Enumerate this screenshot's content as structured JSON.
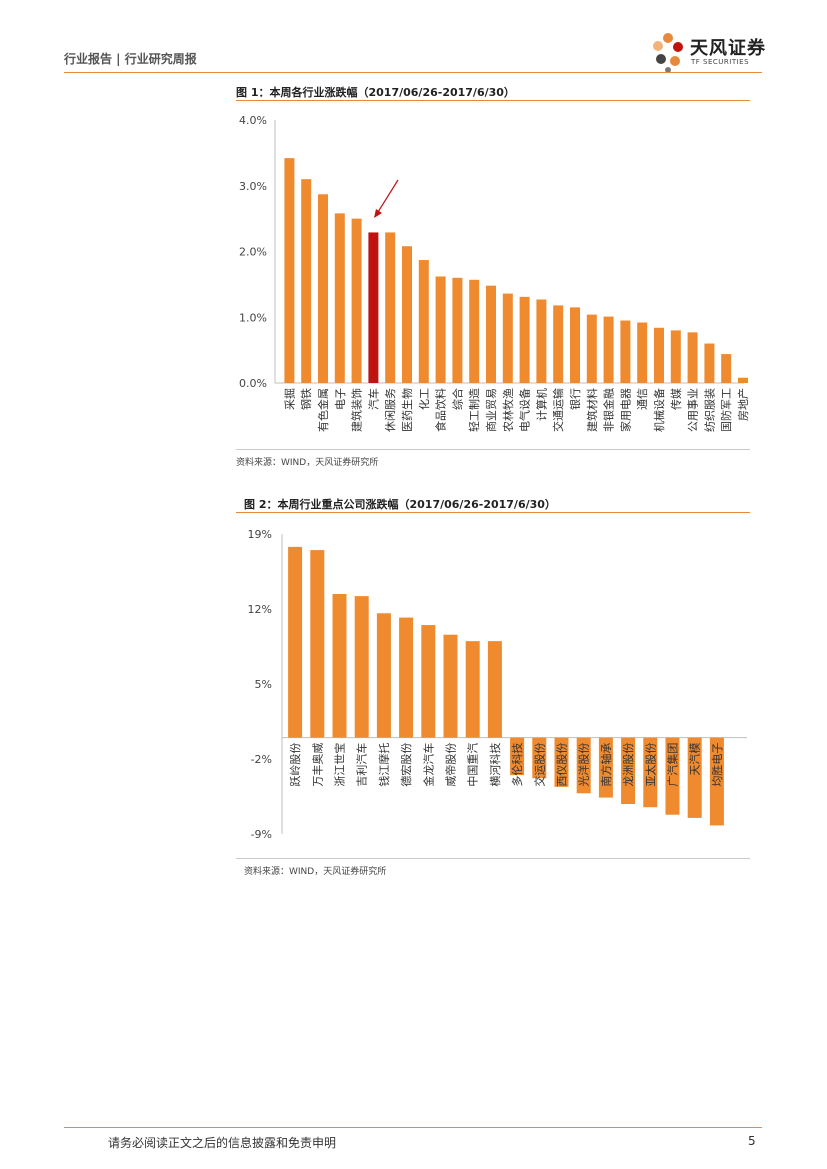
{
  "header": {
    "left_text": "行业报告 | 行业研究周报",
    "logo_cn": "天风证券",
    "logo_en": "TF SECURITIES"
  },
  "figure1": {
    "title": "图 1：本周各行业涨跌幅（2017/06/26-2017/6/30）",
    "source": "资料来源：WIND，天风证券研究所"
  },
  "figure2": {
    "title": "图 2：本周行业重点公司涨跌幅（2017/06/26-2017/6/30）",
    "source": "资料来源：WIND，天风证券研究所"
  },
  "footer": {
    "disclaimer": "请务必阅读正文之后的信息披露和免责申明",
    "page": "5"
  },
  "colors": {
    "accent": "#e8883a",
    "bar": "#ef8a2f",
    "highlight": "#c0120f"
  },
  "chart_data": [
    {
      "type": "bar",
      "title": "本周各行业涨跌幅（2017/06/26-2017/6/30）",
      "categories": [
        "采掘",
        "钢铁",
        "有色金属",
        "电子",
        "建筑装饰",
        "汽车",
        "休闲服务",
        "医药生物",
        "化工",
        "食品饮料",
        "综合",
        "轻工制造",
        "商业贸易",
        "农林牧渔",
        "电气设备",
        "计算机",
        "交通运输",
        "银行",
        "建筑材料",
        "非银金融",
        "家用电器",
        "通信",
        "机械设备",
        "传媒",
        "公用事业",
        "纺织服装",
        "国防军工",
        "房地产"
      ],
      "values": [
        3.42,
        3.1,
        2.87,
        2.58,
        2.5,
        2.29,
        2.29,
        2.08,
        1.87,
        1.62,
        1.6,
        1.57,
        1.48,
        1.36,
        1.31,
        1.27,
        1.18,
        1.15,
        1.04,
        1.01,
        0.95,
        0.92,
        0.84,
        0.8,
        0.77,
        0.6,
        0.44,
        0.08
      ],
      "highlight": "汽车",
      "ylim": [
        0,
        4
      ],
      "yticks": [
        "0.0%",
        "1.0%",
        "2.0%",
        "3.0%",
        "4.0%"
      ],
      "ytick_values": [
        0,
        1,
        2,
        3,
        4
      ]
    },
    {
      "type": "bar",
      "title": "本周行业重点公司涨跌幅（2017/06/26-2017/6/30）",
      "categories": [
        "跃岭股份",
        "万丰奥威",
        "浙江世宝",
        "吉利汽车",
        "钱江摩托",
        "德宏股份",
        "金龙汽车",
        "威帝股份",
        "中国重汽",
        "横河科技",
        "多伦科技",
        "交运股份",
        "西仪股份",
        "光洋股份",
        "南方轴承",
        "龙洲股份",
        "亚太股份",
        "广汽集团",
        "天汽模",
        "均胜电子"
      ],
      "values": [
        17.8,
        17.5,
        13.4,
        13.2,
        11.6,
        11.2,
        10.5,
        9.6,
        9.0,
        9.0,
        -3.5,
        -3.8,
        -4.6,
        -5.2,
        -5.6,
        -6.2,
        -6.5,
        -7.2,
        -7.5,
        -8.2
      ],
      "ylim": [
        -9,
        19
      ],
      "yticks": [
        "19%",
        "12%",
        "5%",
        "-2%",
        "-9%"
      ],
      "ytick_values": [
        19,
        12,
        5,
        -2,
        -9
      ]
    }
  ]
}
